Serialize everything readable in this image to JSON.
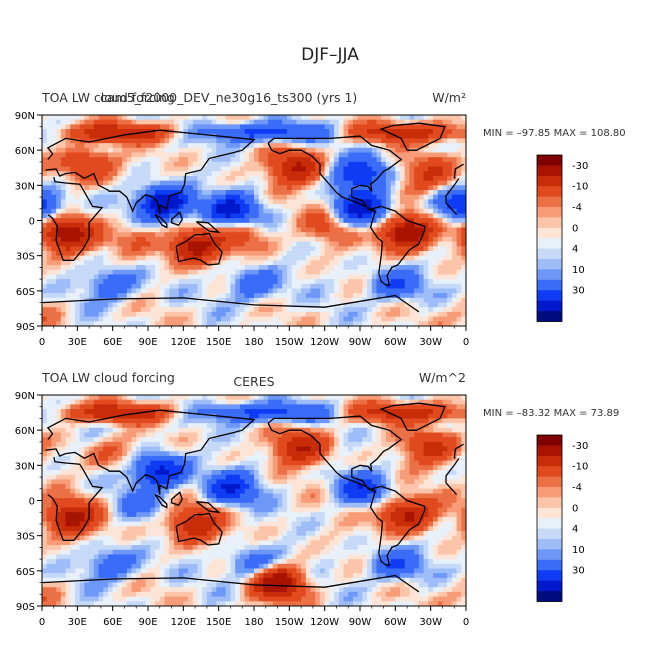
{
  "figure_title": "DJF–JJA",
  "palette": [
    "#000c7f",
    "#0018cc",
    "#0e3cf4",
    "#3a6cf8",
    "#6e98f8",
    "#9ebcf8",
    "#c6daf8",
    "#e8f0fa",
    "#fce4d6",
    "#fcc4a8",
    "#f89c78",
    "#ec7046",
    "#e04a1e",
    "#c82c08",
    "#a81400",
    "#7e0000"
  ],
  "colorbar": {
    "levels": [
      "-30",
      "-10",
      "-4",
      "0",
      "4",
      "10",
      "30"
    ]
  },
  "chart_data": [
    {
      "type": "heatmap",
      "left_title": "TOA LW cloud forcing",
      "model_label": "cam5_f2000_DEV_ne30g16_ts300 (yrs 1)",
      "center_title": "",
      "units": "W/m²",
      "stats": "MIN = –97.85 MAX = 108.80",
      "x_ticks": [
        "0",
        "30E",
        "60E",
        "90E",
        "120E",
        "150E",
        "180",
        "150W",
        "120W",
        "90W",
        "60W",
        "30W",
        "0"
      ],
      "y_ticks": [
        "90N",
        "60N",
        "30N",
        "0",
        "30S",
        "60S",
        "90S"
      ],
      "xlim": [
        0,
        360
      ],
      "ylim": [
        -90,
        90
      ],
      "anomalies": [
        {
          "lon": 20,
          "lat": -12,
          "val": 40
        },
        {
          "lon": 310,
          "lat": -10,
          "val": 45
        },
        {
          "lon": 130,
          "lat": -22,
          "val": 35
        },
        {
          "lon": 105,
          "lat": 15,
          "val": -45
        },
        {
          "lon": 160,
          "lat": 8,
          "val": -35
        },
        {
          "lon": 270,
          "lat": 10,
          "val": -35
        },
        {
          "lon": 355,
          "lat": 12,
          "val": -30
        },
        {
          "lon": 215,
          "lat": 45,
          "val": 30
        },
        {
          "lon": 40,
          "lat": 48,
          "val": 22
        },
        {
          "lon": 330,
          "lat": 40,
          "val": 20
        },
        {
          "lon": 240,
          "lat": -5,
          "val": 12
        },
        {
          "lon": 170,
          "lat": -12,
          "val": 15
        },
        {
          "lon": 80,
          "lat": -15,
          "val": 10
        },
        {
          "lon": 270,
          "lat": 40,
          "val": -30
        }
      ]
    },
    {
      "type": "heatmap",
      "left_title": "TOA LW cloud forcing",
      "model_label": "",
      "center_title": "CERES",
      "units": "W/m^2",
      "stats": "MIN = –83.32 MAX =  73.89",
      "x_ticks": [
        "0",
        "30E",
        "60E",
        "90E",
        "120E",
        "150E",
        "180",
        "150W",
        "120W",
        "90W",
        "60W",
        "30W",
        "0"
      ],
      "y_ticks": [
        "90N",
        "60N",
        "30N",
        "0",
        "30S",
        "60S",
        "90S"
      ],
      "xlim": [
        0,
        360
      ],
      "ylim": [
        -90,
        90
      ],
      "anomalies": [
        {
          "lon": 25,
          "lat": -15,
          "val": 35
        },
        {
          "lon": 310,
          "lat": -12,
          "val": 35
        },
        {
          "lon": 130,
          "lat": -20,
          "val": 30
        },
        {
          "lon": 100,
          "lat": 25,
          "val": -35
        },
        {
          "lon": 160,
          "lat": 10,
          "val": -28
        },
        {
          "lon": 270,
          "lat": 10,
          "val": -25
        },
        {
          "lon": 220,
          "lat": 45,
          "val": 28
        },
        {
          "lon": 330,
          "lat": 45,
          "val": 22
        },
        {
          "lon": 60,
          "lat": 40,
          "val": 10
        },
        {
          "lon": 200,
          "lat": -70,
          "val": 40
        },
        {
          "lon": 80,
          "lat": -5,
          "val": -10
        }
      ]
    }
  ]
}
